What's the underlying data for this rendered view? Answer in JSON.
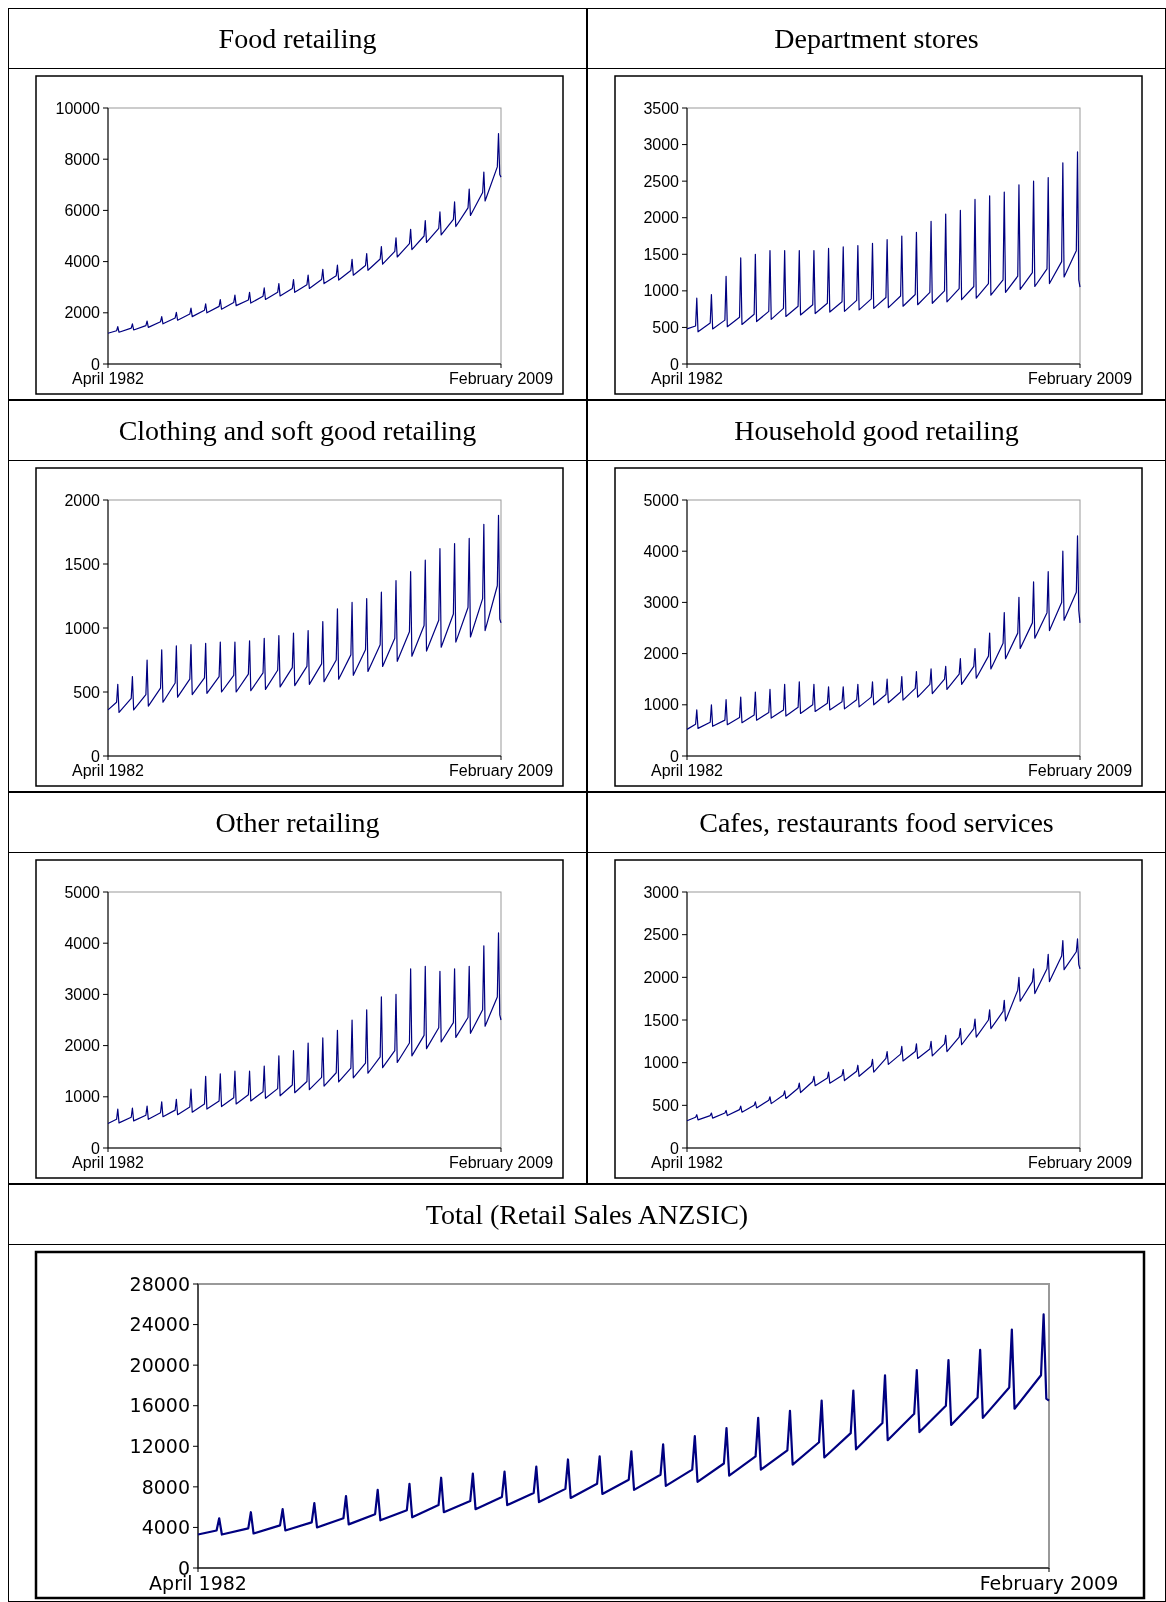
{
  "chart_data": [
    {
      "type": "line",
      "title": "Food retailing",
      "x": [
        "1982-04",
        "1982-11",
        "1982-12",
        "1983-01",
        "1983-11",
        "1983-12",
        "1984-01",
        "1984-11",
        "1984-12",
        "1985-01",
        "1985-11",
        "1985-12",
        "1986-01",
        "1986-11",
        "1986-12",
        "1987-01",
        "1987-11",
        "1987-12",
        "1988-01",
        "1988-11",
        "1988-12",
        "1989-01",
        "1989-11",
        "1989-12",
        "1990-01",
        "1990-11",
        "1990-12",
        "1991-01",
        "1991-11",
        "1991-12",
        "1992-01",
        "1992-11",
        "1992-12",
        "1993-01",
        "1993-11",
        "1993-12",
        "1994-01",
        "1994-11",
        "1994-12",
        "1995-01",
        "1995-11",
        "1995-12",
        "1996-01",
        "1996-11",
        "1996-12",
        "1997-01",
        "1997-11",
        "1997-12",
        "1998-01",
        "1998-11",
        "1998-12",
        "1999-01",
        "1999-11",
        "1999-12",
        "2000-01",
        "2000-11",
        "2000-12",
        "2001-01",
        "2001-11",
        "2001-12",
        "2002-01",
        "2002-11",
        "2002-12",
        "2003-01",
        "2003-11",
        "2003-12",
        "2004-01",
        "2004-11",
        "2004-12",
        "2005-01",
        "2005-11",
        "2005-12",
        "2006-01",
        "2006-11",
        "2006-12",
        "2007-01",
        "2007-11",
        "2007-12",
        "2008-01",
        "2008-11",
        "2008-12",
        "2009-01",
        "2009-02"
      ],
      "xlim": [
        "1982-04",
        "2009-02"
      ],
      "xticks": [
        {
          "value": "1982-04",
          "label": "April 1982"
        },
        {
          "value": "2009-02",
          "label": "February 2009"
        }
      ],
      "ylim": [
        0,
        10000
      ],
      "yticks": [
        0,
        2000,
        4000,
        6000,
        8000,
        10000
      ],
      "series": [
        {
          "color": "#000080",
          "values": [
            1200,
            1300,
            1460,
            1240,
            1400,
            1570,
            1330,
            1500,
            1680,
            1430,
            1650,
            1850,
            1570,
            1800,
            2020,
            1710,
            1950,
            2180,
            1850,
            2100,
            2350,
            2000,
            2250,
            2520,
            2140,
            2400,
            2690,
            2280,
            2500,
            2800,
            2380,
            2650,
            2970,
            2520,
            2800,
            3140,
            2660,
            2950,
            3300,
            2800,
            3100,
            3470,
            2950,
            3300,
            3700,
            3140,
            3450,
            3860,
            3280,
            3650,
            4090,
            3470,
            3850,
            4310,
            3660,
            4100,
            4590,
            3900,
            4400,
            4930,
            4180,
            4700,
            5260,
            4470,
            5000,
            5600,
            4750,
            5300,
            5940,
            5040,
            5650,
            6330,
            5370,
            6100,
            6830,
            5800,
            6700,
            7500,
            6370,
            7700,
            9000,
            7400,
            7300
          ]
        }
      ]
    },
    {
      "type": "line",
      "title": "Department stores",
      "x": [
        "1982-04",
        "1982-11",
        "1982-12",
        "1983-01",
        "1983-11",
        "1983-12",
        "1984-01",
        "1984-11",
        "1984-12",
        "1985-01",
        "1985-11",
        "1985-12",
        "1986-01",
        "1986-11",
        "1986-12",
        "1987-01",
        "1987-11",
        "1987-12",
        "1988-01",
        "1988-11",
        "1988-12",
        "1989-01",
        "1989-11",
        "1989-12",
        "1990-01",
        "1990-11",
        "1990-12",
        "1991-01",
        "1991-11",
        "1991-12",
        "1992-01",
        "1992-11",
        "1992-12",
        "1993-01",
        "1993-11",
        "1993-12",
        "1994-01",
        "1994-11",
        "1994-12",
        "1995-01",
        "1995-11",
        "1995-12",
        "1996-01",
        "1996-11",
        "1996-12",
        "1997-01",
        "1997-11",
        "1997-12",
        "1998-01",
        "1998-11",
        "1998-12",
        "1999-01",
        "1999-11",
        "1999-12",
        "2000-01",
        "2000-11",
        "2000-12",
        "2001-01",
        "2001-11",
        "2001-12",
        "2002-01",
        "2002-11",
        "2002-12",
        "2003-01",
        "2003-11",
        "2003-12",
        "2004-01",
        "2004-11",
        "2004-12",
        "2005-01",
        "2005-11",
        "2005-12",
        "2006-01",
        "2006-11",
        "2006-12",
        "2007-01",
        "2007-11",
        "2007-12",
        "2008-01",
        "2008-11",
        "2008-12",
        "2009-01",
        "2009-02"
      ],
      "xlim": [
        "1982-04",
        "2009-02"
      ],
      "xticks": [
        {
          "value": "1982-04",
          "label": "April 1982"
        },
        {
          "value": "2009-02",
          "label": "February 2009"
        }
      ],
      "ylim": [
        0,
        3500
      ],
      "yticks": [
        0,
        500,
        1000,
        1500,
        2000,
        2500,
        3000,
        3500
      ],
      "series": [
        {
          "color": "#000080",
          "values": [
            480,
            520,
            900,
            440,
            560,
            950,
            480,
            600,
            1200,
            510,
            640,
            1450,
            540,
            680,
            1500,
            580,
            720,
            1550,
            610,
            760,
            1550,
            650,
            790,
            1550,
            670,
            810,
            1550,
            690,
            830,
            1580,
            710,
            850,
            1600,
            720,
            870,
            1620,
            740,
            890,
            1650,
            760,
            910,
            1700,
            770,
            930,
            1750,
            790,
            950,
            1800,
            810,
            980,
            1950,
            830,
            1000,
            2050,
            850,
            1030,
            2100,
            880,
            1060,
            2250,
            900,
            1100,
            2300,
            940,
            1150,
            2350,
            980,
            1200,
            2450,
            1020,
            1250,
            2500,
            1060,
            1300,
            2550,
            1100,
            1400,
            2750,
            1190,
            1550,
            2900,
            1150,
            1050
          ]
        }
      ]
    },
    {
      "type": "line",
      "title": "Clothing and soft good retailing",
      "x": [
        "1982-04",
        "1982-11",
        "1982-12",
        "1983-01",
        "1983-11",
        "1983-12",
        "1984-01",
        "1984-11",
        "1984-12",
        "1985-01",
        "1985-11",
        "1985-12",
        "1986-01",
        "1986-11",
        "1986-12",
        "1987-01",
        "1987-11",
        "1987-12",
        "1988-01",
        "1988-11",
        "1988-12",
        "1989-01",
        "1989-11",
        "1989-12",
        "1990-01",
        "1990-11",
        "1990-12",
        "1991-01",
        "1991-11",
        "1991-12",
        "1992-01",
        "1992-11",
        "1992-12",
        "1993-01",
        "1993-11",
        "1993-12",
        "1994-01",
        "1994-11",
        "1994-12",
        "1995-01",
        "1995-11",
        "1995-12",
        "1996-01",
        "1996-11",
        "1996-12",
        "1997-01",
        "1997-11",
        "1997-12",
        "1998-01",
        "1998-11",
        "1998-12",
        "1999-01",
        "1999-11",
        "1999-12",
        "2000-01",
        "2000-11",
        "2000-12",
        "2001-01",
        "2001-11",
        "2001-12",
        "2002-01",
        "2002-11",
        "2002-12",
        "2003-01",
        "2003-11",
        "2003-12",
        "2004-01",
        "2004-11",
        "2004-12",
        "2005-01",
        "2005-11",
        "2005-12",
        "2006-01",
        "2006-11",
        "2006-12",
        "2007-01",
        "2007-11",
        "2007-12",
        "2008-01",
        "2008-11",
        "2008-12",
        "2009-01",
        "2009-02"
      ],
      "xlim": [
        "1982-04",
        "2009-02"
      ],
      "xticks": [
        {
          "value": "1982-04",
          "label": "April 1982"
        },
        {
          "value": "2009-02",
          "label": "February 2009"
        }
      ],
      "ylim": [
        0,
        2000
      ],
      "yticks": [
        0,
        500,
        1000,
        1500,
        2000
      ],
      "series": [
        {
          "color": "#000080",
          "values": [
            360,
            420,
            560,
            340,
            450,
            620,
            360,
            480,
            750,
            390,
            530,
            830,
            420,
            570,
            860,
            460,
            600,
            870,
            480,
            610,
            880,
            490,
            620,
            890,
            500,
            630,
            890,
            500,
            640,
            900,
            510,
            650,
            920,
            520,
            670,
            940,
            540,
            690,
            960,
            550,
            700,
            980,
            560,
            720,
            1050,
            580,
            750,
            1150,
            600,
            790,
            1200,
            630,
            830,
            1230,
            660,
            870,
            1280,
            700,
            920,
            1370,
            740,
            970,
            1440,
            780,
            1020,
            1530,
            820,
            1060,
            1620,
            850,
            1110,
            1660,
            890,
            1160,
            1700,
            930,
            1230,
            1810,
            980,
            1330,
            1880,
            1070,
            1040
          ]
        }
      ]
    },
    {
      "type": "line",
      "title": "Household good retailing",
      "x": [
        "1982-04",
        "1982-11",
        "1982-12",
        "1983-01",
        "1983-11",
        "1983-12",
        "1984-01",
        "1984-11",
        "1984-12",
        "1985-01",
        "1985-11",
        "1985-12",
        "1986-01",
        "1986-11",
        "1986-12",
        "1987-01",
        "1987-11",
        "1987-12",
        "1988-01",
        "1988-11",
        "1988-12",
        "1989-01",
        "1989-11",
        "1989-12",
        "1990-01",
        "1990-11",
        "1990-12",
        "1991-01",
        "1991-11",
        "1991-12",
        "1992-01",
        "1992-11",
        "1992-12",
        "1993-01",
        "1993-11",
        "1993-12",
        "1994-01",
        "1994-11",
        "1994-12",
        "1995-01",
        "1995-11",
        "1995-12",
        "1996-01",
        "1996-11",
        "1996-12",
        "1997-01",
        "1997-11",
        "1997-12",
        "1998-01",
        "1998-11",
        "1998-12",
        "1999-01",
        "1999-11",
        "1999-12",
        "2000-01",
        "2000-11",
        "2000-12",
        "2001-01",
        "2001-11",
        "2001-12",
        "2002-01",
        "2002-11",
        "2002-12",
        "2003-01",
        "2003-11",
        "2003-12",
        "2004-01",
        "2004-11",
        "2004-12",
        "2005-01",
        "2005-11",
        "2005-12",
        "2006-01",
        "2006-11",
        "2006-12",
        "2007-01",
        "2007-11",
        "2007-12",
        "2008-01",
        "2008-11",
        "2008-12",
        "2009-01",
        "2009-02"
      ],
      "xlim": [
        "1982-04",
        "2009-02"
      ],
      "xticks": [
        {
          "value": "1982-04",
          "label": "April 1982"
        },
        {
          "value": "2009-02",
          "label": "February 2009"
        }
      ],
      "ylim": [
        0,
        5000
      ],
      "yticks": [
        0,
        1000,
        2000,
        3000,
        4000,
        5000
      ],
      "series": [
        {
          "color": "#000080",
          "values": [
            520,
            620,
            900,
            540,
            660,
            1000,
            580,
            700,
            1100,
            610,
            750,
            1150,
            650,
            800,
            1250,
            700,
            850,
            1300,
            740,
            900,
            1400,
            780,
            950,
            1450,
            830,
            1000,
            1400,
            870,
            1030,
            1350,
            900,
            1060,
            1350,
            920,
            1100,
            1400,
            960,
            1150,
            1450,
            1000,
            1200,
            1500,
            1040,
            1250,
            1550,
            1090,
            1320,
            1650,
            1150,
            1400,
            1700,
            1220,
            1500,
            1750,
            1300,
            1600,
            1900,
            1400,
            1750,
            2100,
            1520,
            1950,
            2400,
            1700,
            2200,
            2800,
            1900,
            2400,
            3100,
            2100,
            2600,
            3400,
            2300,
            2800,
            3600,
            2450,
            3000,
            4000,
            2650,
            3200,
            4300,
            2850,
            2600
          ]
        }
      ]
    },
    {
      "type": "line",
      "title": "Other retailing",
      "x": [
        "1982-04",
        "1982-11",
        "1982-12",
        "1983-01",
        "1983-11",
        "1983-12",
        "1984-01",
        "1984-11",
        "1984-12",
        "1985-01",
        "1985-11",
        "1985-12",
        "1986-01",
        "1986-11",
        "1986-12",
        "1987-01",
        "1987-11",
        "1987-12",
        "1988-01",
        "1988-11",
        "1988-12",
        "1989-01",
        "1989-11",
        "1989-12",
        "1990-01",
        "1990-11",
        "1990-12",
        "1991-01",
        "1991-11",
        "1991-12",
        "1992-01",
        "1992-11",
        "1992-12",
        "1993-01",
        "1993-11",
        "1993-12",
        "1994-01",
        "1994-11",
        "1994-12",
        "1995-01",
        "1995-11",
        "1995-12",
        "1996-01",
        "1996-11",
        "1996-12",
        "1997-01",
        "1997-11",
        "1997-12",
        "1998-01",
        "1998-11",
        "1998-12",
        "1999-01",
        "1999-11",
        "1999-12",
        "2000-01",
        "2000-11",
        "2000-12",
        "2001-01",
        "2001-11",
        "2001-12",
        "2002-01",
        "2002-11",
        "2002-12",
        "2003-01",
        "2003-11",
        "2003-12",
        "2004-01",
        "2004-11",
        "2004-12",
        "2005-01",
        "2005-11",
        "2005-12",
        "2006-01",
        "2006-11",
        "2006-12",
        "2007-01",
        "2007-11",
        "2007-12",
        "2008-01",
        "2008-11",
        "2008-12",
        "2009-01",
        "2009-02"
      ],
      "xlim": [
        "1982-04",
        "2009-02"
      ],
      "xticks": [
        {
          "value": "1982-04",
          "label": "April 1982"
        },
        {
          "value": "2009-02",
          "label": "February 2009"
        }
      ],
      "ylim": [
        0,
        5000
      ],
      "yticks": [
        0,
        1000,
        2000,
        3000,
        4000,
        5000
      ],
      "series": [
        {
          "color": "#000080",
          "values": [
            480,
            560,
            760,
            490,
            600,
            780,
            530,
            640,
            820,
            560,
            690,
            900,
            610,
            740,
            950,
            650,
            800,
            1150,
            700,
            860,
            1400,
            760,
            920,
            1450,
            810,
            980,
            1500,
            860,
            1040,
            1500,
            920,
            1100,
            1600,
            970,
            1160,
            1800,
            1020,
            1230,
            1900,
            1080,
            1300,
            2050,
            1140,
            1380,
            2150,
            1210,
            1470,
            2300,
            1290,
            1560,
            2500,
            1370,
            1660,
            2700,
            1460,
            1780,
            2950,
            1570,
            1900,
            3000,
            1670,
            2050,
            3500,
            1800,
            2200,
            3550,
            1940,
            2350,
            3450,
            2070,
            2450,
            3500,
            2160,
            2550,
            3550,
            2240,
            2700,
            3950,
            2380,
            2950,
            4200,
            2600,
            2500
          ]
        }
      ]
    },
    {
      "type": "line",
      "title": "Cafes, restaurants food services",
      "x": [
        "1982-04",
        "1982-11",
        "1982-12",
        "1983-01",
        "1983-11",
        "1983-12",
        "1984-01",
        "1984-11",
        "1984-12",
        "1985-01",
        "1985-11",
        "1985-12",
        "1986-01",
        "1986-11",
        "1986-12",
        "1987-01",
        "1987-11",
        "1987-12",
        "1988-01",
        "1988-11",
        "1988-12",
        "1989-01",
        "1989-11",
        "1989-12",
        "1990-01",
        "1990-11",
        "1990-12",
        "1991-01",
        "1991-11",
        "1991-12",
        "1992-01",
        "1992-11",
        "1992-12",
        "1993-01",
        "1993-11",
        "1993-12",
        "1994-01",
        "1994-11",
        "1994-12",
        "1995-01",
        "1995-11",
        "1995-12",
        "1996-01",
        "1996-11",
        "1996-12",
        "1997-01",
        "1997-11",
        "1997-12",
        "1998-01",
        "1998-11",
        "1998-12",
        "1999-01",
        "1999-11",
        "1999-12",
        "2000-01",
        "2000-11",
        "2000-12",
        "2001-01",
        "2001-11",
        "2001-12",
        "2002-01",
        "2002-11",
        "2002-12",
        "2003-01",
        "2003-11",
        "2003-12",
        "2004-01",
        "2004-11",
        "2004-12",
        "2005-01",
        "2005-11",
        "2005-12",
        "2006-01",
        "2006-11",
        "2006-12",
        "2007-01",
        "2007-11",
        "2007-12",
        "2008-01",
        "2008-11",
        "2008-12",
        "2009-01",
        "2009-02"
      ],
      "xlim": [
        "1982-04",
        "2009-02"
      ],
      "xticks": [
        {
          "value": "1982-04",
          "label": "April 1982"
        },
        {
          "value": "2009-02",
          "label": "February 2009"
        }
      ],
      "ylim": [
        0,
        3000
      ],
      "yticks": [
        0,
        500,
        1000,
        1500,
        2000,
        2500,
        3000
      ],
      "series": [
        {
          "color": "#000080",
          "values": [
            320,
            360,
            390,
            330,
            380,
            410,
            350,
            410,
            440,
            380,
            450,
            490,
            420,
            500,
            540,
            470,
            560,
            600,
            520,
            620,
            670,
            580,
            700,
            760,
            650,
            780,
            840,
            730,
            820,
            890,
            760,
            850,
            920,
            790,
            900,
            970,
            840,
            960,
            1040,
            890,
            1050,
            1130,
            980,
            1100,
            1190,
            1020,
            1130,
            1220,
            1050,
            1160,
            1250,
            1080,
            1220,
            1320,
            1130,
            1300,
            1400,
            1210,
            1400,
            1510,
            1300,
            1500,
            1620,
            1400,
            1600,
            1730,
            1490,
            1850,
            2000,
            1720,
            1950,
            2100,
            1810,
            2100,
            2270,
            1950,
            2250,
            2430,
            2090,
            2300,
            2450,
            2150,
            2100
          ]
        }
      ]
    },
    {
      "type": "line",
      "title": "Total (Retail Sales ANZSIC)",
      "x": [
        "1982-04",
        "1982-11",
        "1982-12",
        "1983-01",
        "1983-11",
        "1983-12",
        "1984-01",
        "1984-11",
        "1984-12",
        "1985-01",
        "1985-11",
        "1985-12",
        "1986-01",
        "1986-11",
        "1986-12",
        "1987-01",
        "1987-11",
        "1987-12",
        "1988-01",
        "1988-11",
        "1988-12",
        "1989-01",
        "1989-11",
        "1989-12",
        "1990-01",
        "1990-11",
        "1990-12",
        "1991-01",
        "1991-11",
        "1991-12",
        "1992-01",
        "1992-11",
        "1992-12",
        "1993-01",
        "1993-11",
        "1993-12",
        "1994-01",
        "1994-11",
        "1994-12",
        "1995-01",
        "1995-11",
        "1995-12",
        "1996-01",
        "1996-11",
        "1996-12",
        "1997-01",
        "1997-11",
        "1997-12",
        "1998-01",
        "1998-11",
        "1998-12",
        "1999-01",
        "1999-11",
        "1999-12",
        "2000-01",
        "2000-11",
        "2000-12",
        "2001-01",
        "2001-11",
        "2001-12",
        "2002-01",
        "2002-11",
        "2002-12",
        "2003-01",
        "2003-11",
        "2003-12",
        "2004-01",
        "2004-11",
        "2004-12",
        "2005-01",
        "2005-11",
        "2005-12",
        "2006-01",
        "2006-11",
        "2006-12",
        "2007-01",
        "2007-11",
        "2007-12",
        "2008-01",
        "2008-11",
        "2008-12",
        "2009-01",
        "2009-02"
      ],
      "xlim": [
        "1982-04",
        "2009-02"
      ],
      "xticks": [
        {
          "value": "1982-04",
          "label": "April 1982"
        },
        {
          "value": "2009-02",
          "label": "February 2009"
        }
      ],
      "ylim": [
        0,
        28000
      ],
      "yticks": [
        0,
        4000,
        8000,
        12000,
        16000,
        20000,
        24000,
        28000
      ],
      "series": [
        {
          "color": "#000080",
          "values": [
            3300,
            3700,
            4900,
            3300,
            3900,
            5500,
            3400,
            4200,
            5800,
            3700,
            4500,
            6400,
            4000,
            4900,
            7100,
            4300,
            5300,
            7700,
            4700,
            5700,
            8300,
            5000,
            6200,
            8900,
            5500,
            6600,
            9300,
            5800,
            7000,
            9500,
            6200,
            7400,
            10000,
            6500,
            7800,
            10700,
            6900,
            8300,
            11000,
            7300,
            8700,
            11500,
            7700,
            9200,
            12200,
            8100,
            9700,
            13000,
            8500,
            10300,
            13800,
            9100,
            11000,
            14800,
            9700,
            11600,
            15500,
            10200,
            12400,
            16500,
            10900,
            13300,
            17500,
            11700,
            14300,
            19000,
            12600,
            15200,
            19500,
            13400,
            16000,
            20500,
            14100,
            16800,
            21500,
            14800,
            17800,
            23500,
            15700,
            19000,
            25000,
            16700,
            16500
          ]
        }
      ]
    }
  ]
}
